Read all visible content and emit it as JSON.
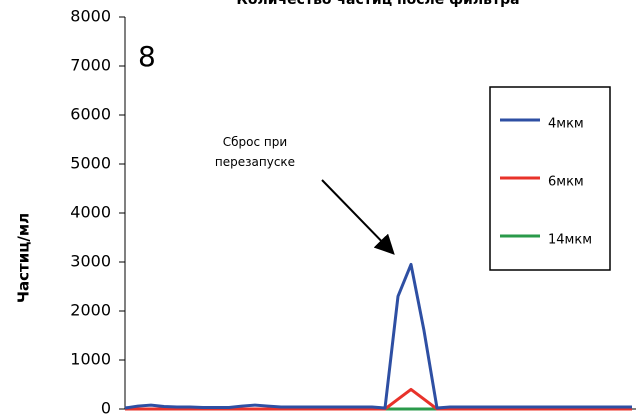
{
  "chart_data": {
    "type": "line",
    "title": "Количество частиц после фильтра",
    "y_label": "Частиц/мл",
    "annotations": [
      "8",
      "Сброс при перезапуске"
    ],
    "categories": [
      null,
      null,
      null,
      null,
      null,
      null,
      null,
      null,
      null,
      null,
      null,
      null,
      null,
      null,
      null,
      null,
      null,
      null,
      null,
      null,
      null,
      null,
      null,
      null,
      null,
      null,
      null,
      null,
      null,
      null,
      null,
      null,
      null,
      null,
      null,
      null,
      null,
      null,
      null,
      null
    ],
    "series": [
      {
        "name": "4мкм",
        "color": "#2e4fa3",
        "values": [
          20,
          60,
          80,
          50,
          40,
          40,
          30,
          30,
          30,
          60,
          80,
          60,
          40,
          40,
          40,
          40,
          40,
          40,
          40,
          40,
          20,
          2300,
          2950,
          1600,
          20,
          40,
          40,
          40,
          40,
          40,
          40,
          40,
          40,
          40,
          40,
          40,
          40,
          40,
          40,
          40
        ]
      },
      {
        "name": "6мкм",
        "color": "#e8322a",
        "values": [
          0,
          0,
          0,
          0,
          0,
          0,
          0,
          0,
          0,
          0,
          0,
          0,
          0,
          0,
          0,
          0,
          0,
          0,
          0,
          0,
          0,
          200,
          400,
          200,
          0,
          0,
          0,
          0,
          0,
          0,
          0,
          0,
          0,
          0,
          0,
          0,
          0,
          0,
          0,
          0
        ]
      },
      {
        "name": "14мкм",
        "color": "#2a9a4a",
        "values": [
          0,
          0,
          0,
          0,
          0,
          0,
          0,
          0,
          0,
          0,
          0,
          0,
          0,
          0,
          0,
          0,
          0,
          0,
          0,
          0,
          0,
          0,
          0,
          0,
          0,
          0,
          0,
          0,
          0,
          0,
          0,
          0,
          0,
          0,
          0,
          0,
          0,
          0,
          0,
          0
        ]
      }
    ],
    "ylim": [
      0,
      8000
    ],
    "yticks": [
      0,
      1000,
      2000,
      3000,
      4000,
      5000,
      6000,
      7000,
      8000
    ]
  }
}
